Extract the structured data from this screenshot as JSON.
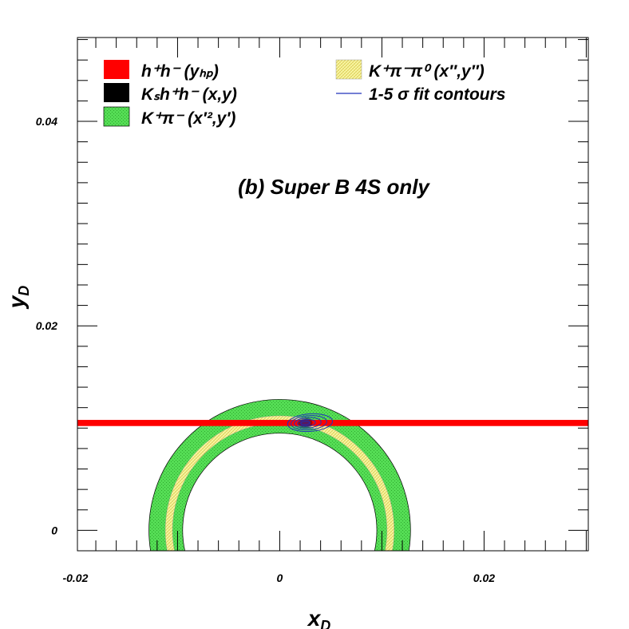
{
  "chart_data": {
    "type": "area",
    "xlim": [
      -0.0198,
      0.0302
    ],
    "ylim": [
      -0.002,
      0.0482
    ],
    "x_ticks": [
      {
        "value": -0.02,
        "label": "-0.02"
      },
      {
        "value": 0,
        "label": "0"
      },
      {
        "value": 0.02,
        "label": "0.02"
      }
    ],
    "y_ticks": [
      {
        "value": 0,
        "label": "0"
      },
      {
        "value": 0.02,
        "label": "0.02"
      },
      {
        "value": 0.04,
        "label": "0.04"
      }
    ],
    "xlabel": "x",
    "xlabel_sub": "D",
    "ylabel": "y",
    "ylabel_sub": "D",
    "annotation": "(b)  Super B 4S only",
    "legend_placement": "top",
    "series": [
      {
        "name": "h⁺h⁻    (yₕₚ)",
        "kind": "band",
        "y_center": 0.0105,
        "y_half_width": 0.0003,
        "color": "#ff0000"
      },
      {
        "name": "Kₛh⁺h⁻ (x,y)",
        "kind": "point",
        "x": 0.0025,
        "y": 0.0105,
        "color": "#000000"
      },
      {
        "name": "K⁺π⁻  (x′²,y′)",
        "kind": "annulus",
        "cx": 0,
        "cy": 0,
        "r_inner": 0.0095,
        "r_outer": 0.0128,
        "y_min": -0.002,
        "color": "#44d444"
      },
      {
        "name": "K⁺π⁻π⁰ (x″,y″)",
        "kind": "annulus",
        "cx": 0,
        "cy": 0,
        "r_inner": 0.0105,
        "r_outer": 0.0112,
        "y_min": -0.002,
        "color": "#f4f27a"
      },
      {
        "name": "1-5 σ fit contours",
        "kind": "ellipses",
        "cx": 0.0025,
        "cy": 0.0105,
        "rx_1sigma": 0.0008,
        "ry_1sigma": 0.00045,
        "tilt_deg": -4,
        "count": 5,
        "color": "#2233bb"
      }
    ]
  }
}
